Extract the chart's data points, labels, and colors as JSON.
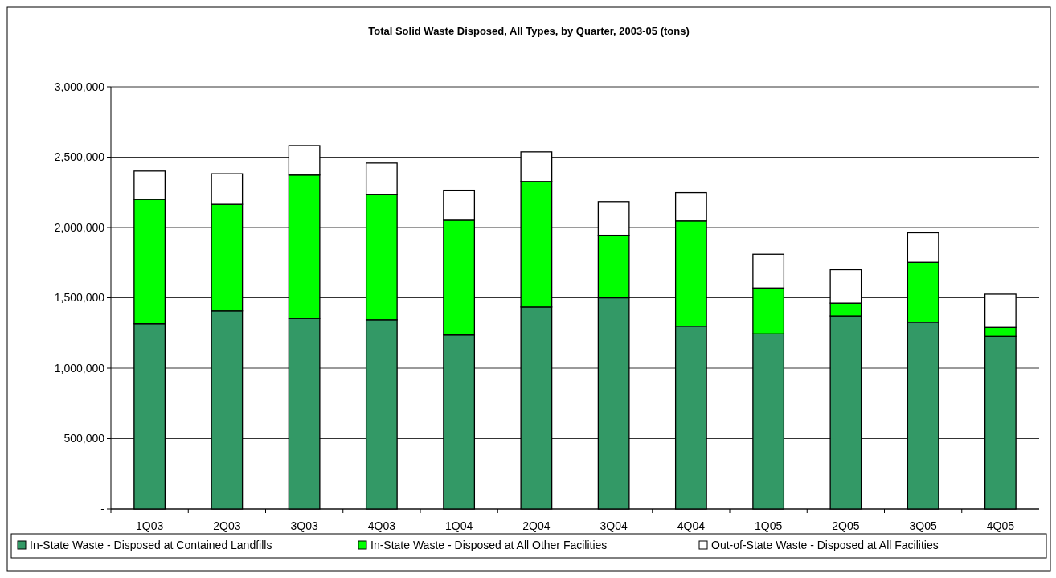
{
  "chart_data": {
    "type": "bar",
    "title": "Total Solid Waste Disposed, All Types, by Quarter, 2003-05 (tons)",
    "stacked": true,
    "categories": [
      "1Q03",
      "2Q03",
      "3Q03",
      "4Q03",
      "1Q04",
      "2Q04",
      "3Q04",
      "4Q04",
      "1Q05",
      "2Q05",
      "3Q05",
      "4Q05"
    ],
    "series": [
      {
        "name": "In-State Waste - Disposed at Contained Landfills",
        "color": "#339966",
        "values": [
          1316000,
          1407000,
          1354000,
          1344000,
          1236000,
          1435000,
          1500000,
          1299000,
          1244000,
          1371000,
          1327000,
          1227000
        ]
      },
      {
        "name": "In-State Waste - Disposed at All Other Facilities",
        "color": "#00ff00",
        "values": [
          884000,
          758000,
          1019000,
          892000,
          816000,
          892000,
          445000,
          748000,
          326000,
          91000,
          426000,
          63000
        ]
      },
      {
        "name": "Out-of-State Waste - Disposed at All Facilities",
        "color": "#ffffff",
        "values": [
          201000,
          217000,
          210000,
          222000,
          213000,
          211000,
          239000,
          201000,
          240000,
          238000,
          210000,
          236000
        ]
      }
    ],
    "ylim": [
      0,
      3000000
    ],
    "yticks": [
      {
        "value": 0,
        "label": "-"
      },
      {
        "value": 500000,
        "label": "500,000"
      },
      {
        "value": 1000000,
        "label": "1,000,000"
      },
      {
        "value": 1500000,
        "label": "1,500,000"
      },
      {
        "value": 2000000,
        "label": "2,000,000"
      },
      {
        "value": 2500000,
        "label": "2,500,000"
      },
      {
        "value": 3000000,
        "label": "3,000,000"
      }
    ],
    "grid": "y",
    "legend": "bottom"
  }
}
